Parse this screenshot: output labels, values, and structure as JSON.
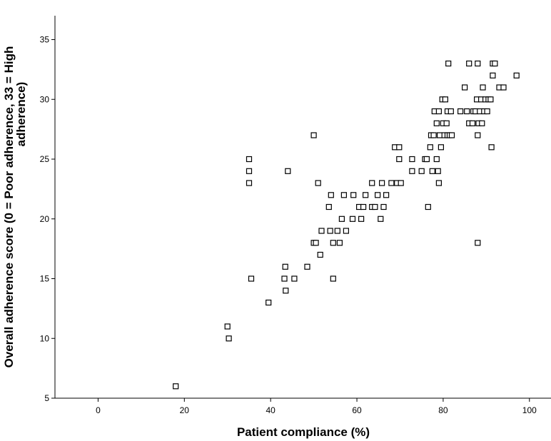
{
  "chart_data": {
    "type": "scatter",
    "title": "",
    "xlabel": "Patient compliance (%)",
    "ylabel_lines": [
      "Overall adherence score (0 = Poor adherence, 33 = High",
      "adherence)"
    ],
    "xlim": [
      -10,
      105
    ],
    "ylim": [
      5,
      37
    ],
    "xticks": [
      0,
      20,
      40,
      60,
      80,
      100
    ],
    "yticks": [
      5,
      10,
      15,
      20,
      25,
      30,
      35
    ],
    "marker": "open-square",
    "grid": false,
    "points": [
      [
        18,
        6
      ],
      [
        30,
        11
      ],
      [
        30.3,
        10
      ],
      [
        35,
        25
      ],
      [
        35,
        24
      ],
      [
        35,
        23
      ],
      [
        35.5,
        15
      ],
      [
        39.5,
        13
      ],
      [
        43.2,
        15
      ],
      [
        43.4,
        16
      ],
      [
        43.5,
        14
      ],
      [
        44,
        24
      ],
      [
        45.5,
        15
      ],
      [
        48.5,
        16
      ],
      [
        50,
        27
      ],
      [
        50,
        18
      ],
      [
        50.5,
        18
      ],
      [
        51,
        23
      ],
      [
        51.5,
        17
      ],
      [
        51.8,
        19
      ],
      [
        53.5,
        21
      ],
      [
        53.8,
        19
      ],
      [
        54,
        22
      ],
      [
        54.5,
        15
      ],
      [
        54.5,
        18
      ],
      [
        55.5,
        19
      ],
      [
        56,
        18
      ],
      [
        56.5,
        20
      ],
      [
        57,
        22
      ],
      [
        57.5,
        19
      ],
      [
        59,
        20
      ],
      [
        59.2,
        22
      ],
      [
        60.5,
        21
      ],
      [
        61,
        20
      ],
      [
        61.5,
        21
      ],
      [
        62,
        22
      ],
      [
        63.5,
        23
      ],
      [
        63.5,
        21
      ],
      [
        64.2,
        21
      ],
      [
        64.8,
        22
      ],
      [
        65.5,
        20
      ],
      [
        65.8,
        23
      ],
      [
        66.2,
        21
      ],
      [
        66.8,
        22
      ],
      [
        68,
        23
      ],
      [
        68.8,
        26
      ],
      [
        69.3,
        23
      ],
      [
        69.8,
        26
      ],
      [
        69.8,
        25
      ],
      [
        70.2,
        23
      ],
      [
        72.8,
        25
      ],
      [
        72.8,
        24
      ],
      [
        75,
        24
      ],
      [
        75.8,
        25
      ],
      [
        76.2,
        25
      ],
      [
        76.5,
        21
      ],
      [
        77,
        26
      ],
      [
        77.2,
        27
      ],
      [
        77.5,
        24
      ],
      [
        77.8,
        27
      ],
      [
        78,
        29
      ],
      [
        78.5,
        25
      ],
      [
        78.5,
        28
      ],
      [
        78.8,
        24
      ],
      [
        79,
        29
      ],
      [
        79,
        23
      ],
      [
        79.2,
        27
      ],
      [
        79.5,
        26
      ],
      [
        79.8,
        30
      ],
      [
        80,
        28
      ],
      [
        80.3,
        27
      ],
      [
        80.5,
        30
      ],
      [
        80.8,
        28
      ],
      [
        81,
        27
      ],
      [
        81,
        29
      ],
      [
        81.2,
        33
      ],
      [
        81.5,
        27
      ],
      [
        81.8,
        29
      ],
      [
        82,
        27
      ],
      [
        84,
        29
      ],
      [
        85,
        31
      ],
      [
        85.5,
        29
      ],
      [
        86,
        33
      ],
      [
        86,
        28
      ],
      [
        86.8,
        28
      ],
      [
        87,
        29
      ],
      [
        87.5,
        29
      ],
      [
        87.8,
        30
      ],
      [
        88,
        33
      ],
      [
        88,
        27
      ],
      [
        88,
        18
      ],
      [
        88.2,
        28
      ],
      [
        88.5,
        29
      ],
      [
        88.8,
        30
      ],
      [
        89,
        28
      ],
      [
        89.2,
        31
      ],
      [
        89.5,
        29
      ],
      [
        89.8,
        30
      ],
      [
        90.2,
        29
      ],
      [
        90.5,
        30
      ],
      [
        91,
        30
      ],
      [
        91.2,
        26
      ],
      [
        91.5,
        33
      ],
      [
        91.5,
        32
      ],
      [
        92,
        33
      ],
      [
        93,
        31
      ],
      [
        94,
        31
      ],
      [
        97,
        32
      ]
    ]
  }
}
